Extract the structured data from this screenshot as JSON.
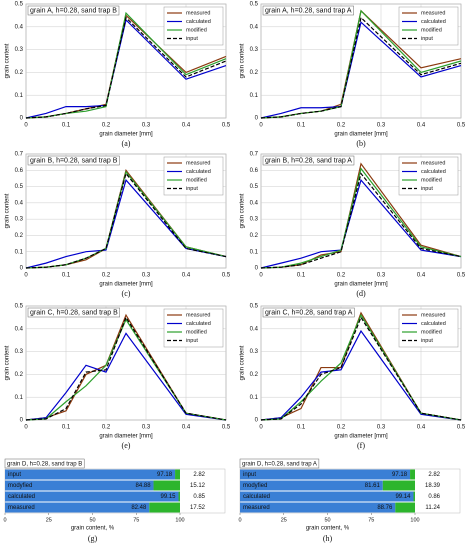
{
  "chart_data": [
    {
      "type": "line",
      "title": "grain A, h=0.28, sand trap B",
      "label": "(a)",
      "xlabel": "grain diameter [mm]",
      "ylabel": "grain content",
      "x": [
        0,
        0.05,
        0.1,
        0.15,
        0.2,
        0.25,
        0.4,
        0.5
      ],
      "xlim": [
        0,
        0.5
      ],
      "xticks": [
        0,
        0.1,
        0.2,
        0.3,
        0.4,
        0.5
      ],
      "ylim": [
        0,
        0.5
      ],
      "yticks": [
        0,
        0.1,
        0.2,
        0.3,
        0.4,
        0.5
      ],
      "grid": true,
      "series": [
        {
          "name": "measured",
          "color": "#8b3a0f",
          "values": [
            0,
            0.005,
            0.02,
            0.04,
            0.06,
            0.45,
            0.2,
            0.27
          ]
        },
        {
          "name": "calculated",
          "color": "#0000cc",
          "values": [
            0,
            0.02,
            0.05,
            0.05,
            0.055,
            0.43,
            0.17,
            0.23
          ]
        },
        {
          "name": "modified",
          "color": "#2ca02c",
          "values": [
            0,
            0.005,
            0.02,
            0.03,
            0.05,
            0.46,
            0.19,
            0.26
          ]
        },
        {
          "name": "input",
          "color": "#000000",
          "dashed": true,
          "values": [
            0,
            0.005,
            0.02,
            0.04,
            0.055,
            0.44,
            0.18,
            0.25
          ]
        }
      ]
    },
    {
      "type": "line",
      "title": "grain A, h=0.28, sand trap A",
      "label": "(b)",
      "xlabel": "grain diameter [mm]",
      "ylabel": "grain content",
      "x": [
        0,
        0.05,
        0.1,
        0.15,
        0.2,
        0.25,
        0.4,
        0.5
      ],
      "xlim": [
        0,
        0.5
      ],
      "xticks": [
        0,
        0.1,
        0.2,
        0.3,
        0.4,
        0.5
      ],
      "ylim": [
        0,
        0.5
      ],
      "yticks": [
        0,
        0.1,
        0.2,
        0.3,
        0.4,
        0.5
      ],
      "grid": true,
      "series": [
        {
          "name": "measured",
          "color": "#8b3a0f",
          "values": [
            0,
            0.005,
            0.02,
            0.03,
            0.06,
            0.47,
            0.22,
            0.26
          ]
        },
        {
          "name": "calculated",
          "color": "#0000cc",
          "values": [
            0,
            0.02,
            0.045,
            0.045,
            0.05,
            0.42,
            0.18,
            0.23
          ]
        },
        {
          "name": "modified",
          "color": "#2ca02c",
          "values": [
            0,
            0.005,
            0.02,
            0.03,
            0.05,
            0.47,
            0.2,
            0.25
          ]
        },
        {
          "name": "input",
          "color": "#000000",
          "dashed": true,
          "values": [
            0,
            0.005,
            0.02,
            0.03,
            0.05,
            0.44,
            0.19,
            0.24
          ]
        }
      ]
    },
    {
      "type": "line",
      "title": "grain B, h=0.28, sand trap B",
      "label": "(c)",
      "xlabel": "grain diameter [mm]",
      "ylabel": "grain content",
      "x": [
        0,
        0.05,
        0.1,
        0.15,
        0.2,
        0.25,
        0.4,
        0.5
      ],
      "xlim": [
        0,
        0.5
      ],
      "xticks": [
        0,
        0.1,
        0.2,
        0.3,
        0.4,
        0.5
      ],
      "ylim": [
        0,
        0.7
      ],
      "yticks": [
        0,
        0.1,
        0.2,
        0.3,
        0.4,
        0.5,
        0.6,
        0.7
      ],
      "grid": true,
      "series": [
        {
          "name": "measured",
          "color": "#8b3a0f",
          "values": [
            0,
            0.005,
            0.02,
            0.05,
            0.12,
            0.6,
            0.13,
            0.07
          ]
        },
        {
          "name": "calculated",
          "color": "#0000cc",
          "values": [
            0,
            0.03,
            0.07,
            0.1,
            0.11,
            0.54,
            0.12,
            0.07
          ]
        },
        {
          "name": "modified",
          "color": "#2ca02c",
          "values": [
            0,
            0.005,
            0.02,
            0.06,
            0.12,
            0.59,
            0.13,
            0.07
          ]
        },
        {
          "name": "input",
          "color": "#000000",
          "dashed": true,
          "values": [
            0,
            0.005,
            0.02,
            0.06,
            0.12,
            0.58,
            0.12,
            0.07
          ]
        }
      ]
    },
    {
      "type": "line",
      "title": "grain B, h=0.28, sand trap A",
      "label": "(d)",
      "xlabel": "grain diameter [mm]",
      "ylabel": "grain content",
      "x": [
        0,
        0.05,
        0.1,
        0.15,
        0.2,
        0.25,
        0.4,
        0.5
      ],
      "xlim": [
        0,
        0.5
      ],
      "xticks": [
        0,
        0.1,
        0.2,
        0.3,
        0.4,
        0.5
      ],
      "ylim": [
        0,
        0.7
      ],
      "yticks": [
        0,
        0.1,
        0.2,
        0.3,
        0.4,
        0.5,
        0.6,
        0.7
      ],
      "grid": true,
      "series": [
        {
          "name": "measured",
          "color": "#8b3a0f",
          "values": [
            0,
            0.005,
            0.02,
            0.08,
            0.1,
            0.64,
            0.14,
            0.07
          ]
        },
        {
          "name": "calculated",
          "color": "#0000cc",
          "values": [
            0,
            0.03,
            0.06,
            0.1,
            0.11,
            0.54,
            0.11,
            0.07
          ]
        },
        {
          "name": "modified",
          "color": "#2ca02c",
          "values": [
            0,
            0.005,
            0.03,
            0.07,
            0.11,
            0.61,
            0.13,
            0.07
          ]
        },
        {
          "name": "input",
          "color": "#000000",
          "dashed": true,
          "values": [
            0,
            0.005,
            0.02,
            0.06,
            0.1,
            0.58,
            0.12,
            0.07
          ]
        }
      ]
    },
    {
      "type": "line",
      "title": "grain C, h=0.28, sand trap B",
      "label": "(e)",
      "xlabel": "grain diameter [mm]",
      "ylabel": "grain content",
      "x": [
        0,
        0.05,
        0.1,
        0.15,
        0.2,
        0.25,
        0.4,
        0.5
      ],
      "xlim": [
        0,
        0.5
      ],
      "xticks": [
        0,
        0.1,
        0.2,
        0.3,
        0.4,
        0.5
      ],
      "ylim": [
        0,
        0.5
      ],
      "yticks": [
        0,
        0.1,
        0.2,
        0.3,
        0.4,
        0.5
      ],
      "grid": true,
      "series": [
        {
          "name": "measured",
          "color": "#8b3a0f",
          "values": [
            0,
            0.01,
            0.04,
            0.2,
            0.24,
            0.46,
            0.03,
            0
          ]
        },
        {
          "name": "calculated",
          "color": "#0000cc",
          "values": [
            0,
            0.01,
            0.12,
            0.24,
            0.21,
            0.38,
            0.025,
            0
          ]
        },
        {
          "name": "modified",
          "color": "#2ca02c",
          "values": [
            0,
            0.005,
            0.08,
            0.15,
            0.24,
            0.44,
            0.03,
            0
          ]
        },
        {
          "name": "input",
          "color": "#000000",
          "dashed": true,
          "values": [
            0,
            0.005,
            0.05,
            0.21,
            0.22,
            0.45,
            0.03,
            0
          ]
        }
      ]
    },
    {
      "type": "line",
      "title": "grain C, h=0.28, sand trap A",
      "label": "(f)",
      "xlabel": "grain diameter [mm]",
      "ylabel": "grain content",
      "x": [
        0,
        0.05,
        0.1,
        0.15,
        0.2,
        0.25,
        0.4,
        0.5
      ],
      "xlim": [
        0,
        0.5
      ],
      "xticks": [
        0,
        0.1,
        0.2,
        0.3,
        0.4,
        0.5
      ],
      "ylim": [
        0,
        0.5
      ],
      "yticks": [
        0,
        0.1,
        0.2,
        0.3,
        0.4,
        0.5
      ],
      "grid": true,
      "series": [
        {
          "name": "measured",
          "color": "#8b3a0f",
          "values": [
            0,
            0.01,
            0.05,
            0.23,
            0.23,
            0.47,
            0.03,
            0
          ]
        },
        {
          "name": "calculated",
          "color": "#0000cc",
          "values": [
            0,
            0.01,
            0.1,
            0.21,
            0.22,
            0.39,
            0.025,
            0
          ]
        },
        {
          "name": "modified",
          "color": "#2ca02c",
          "values": [
            0,
            0.005,
            0.08,
            0.17,
            0.25,
            0.46,
            0.03,
            0
          ]
        },
        {
          "name": "input",
          "color": "#000000",
          "dashed": true,
          "values": [
            0,
            0.005,
            0.07,
            0.2,
            0.23,
            0.45,
            0.03,
            0
          ]
        }
      ]
    },
    {
      "type": "bar",
      "title": "grain D, h=0.28, sand trap B",
      "label": "(g)",
      "xlabel": "grain content, %",
      "categories": [
        "input",
        "modyfied",
        "calculated",
        "measured"
      ],
      "xlim": [
        0,
        100
      ],
      "xticks": [
        0,
        25,
        50,
        75,
        100
      ],
      "series": [
        {
          "color": "#3a7fd5",
          "values": [
            97.18,
            84.88,
            99.15,
            82.48
          ]
        },
        {
          "color": "#2db52d",
          "values": [
            2.82,
            15.12,
            0.85,
            17.52
          ]
        }
      ]
    },
    {
      "type": "bar",
      "title": "grain D, h=0.28, sand trap A",
      "label": "(h)",
      "xlabel": "grain content, %",
      "categories": [
        "input",
        "modyfied",
        "calculated",
        "measured"
      ],
      "xlim": [
        0,
        100
      ],
      "xticks": [
        0,
        25,
        50,
        75,
        100
      ],
      "series": [
        {
          "color": "#3a7fd5",
          "values": [
            97.18,
            81.61,
            99.14,
            88.76
          ]
        },
        {
          "color": "#2db52d",
          "values": [
            2.82,
            18.39,
            0.86,
            11.24
          ]
        }
      ]
    }
  ]
}
